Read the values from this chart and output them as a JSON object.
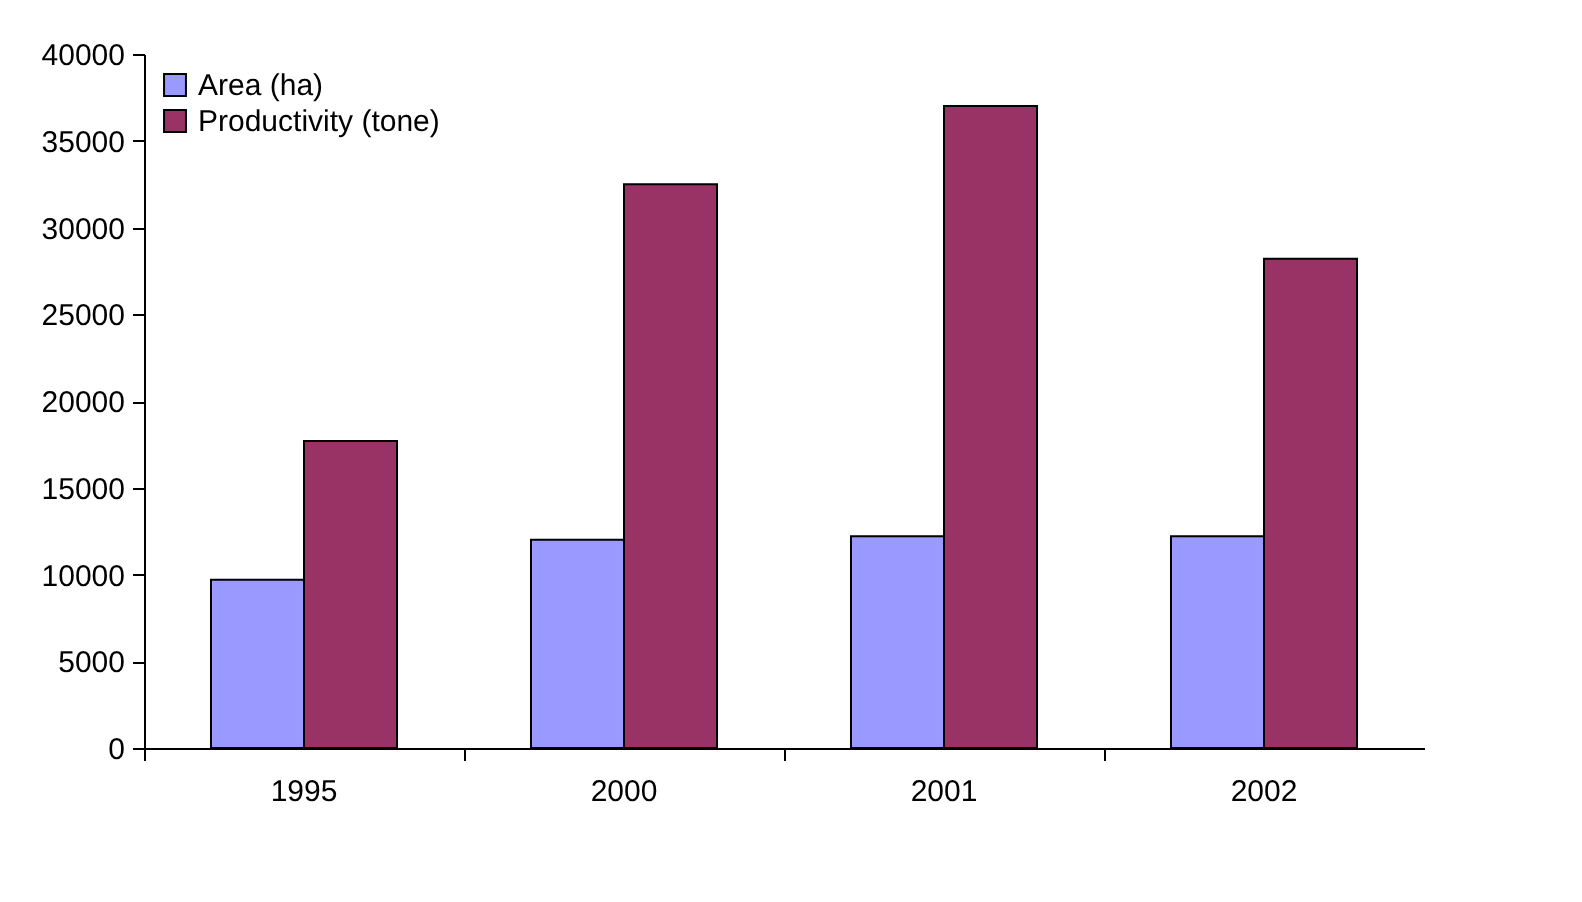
{
  "chart_data": {
    "type": "bar",
    "categories": [
      "1995",
      "2000",
      "2001",
      "2002"
    ],
    "series": [
      {
        "name": "Area (ha)",
        "color": "#9999ff",
        "values": [
          9700,
          12000,
          12200,
          12200
        ]
      },
      {
        "name": "Productivity (tone)",
        "color": "#993366",
        "values": [
          17700,
          32500,
          37000,
          28200
        ]
      }
    ],
    "ylim": [
      0,
      40000
    ],
    "yticks": [
      0,
      5000,
      10000,
      15000,
      20000,
      25000,
      30000,
      35000,
      40000
    ],
    "grid": false,
    "legend": "top left"
  }
}
